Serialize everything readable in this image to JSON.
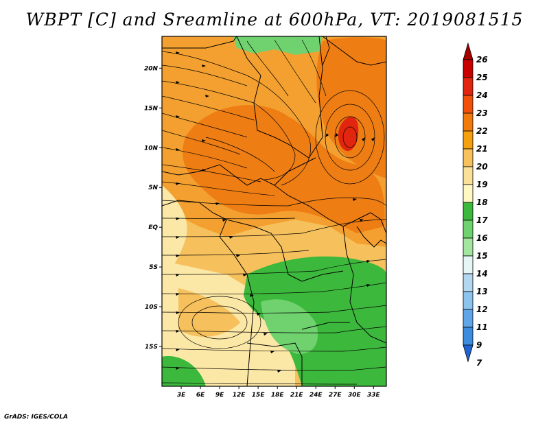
{
  "title": "WBPT [C] and Sreamline at 600hPa, VT: 2019081515",
  "footer": "GrADS: IGES/COLA",
  "map": {
    "lon_range": [
      0,
      35
    ],
    "lat_range": [
      -20,
      24
    ],
    "x_ticks": [
      "3E",
      "6E",
      "9E",
      "12E",
      "15E",
      "18E",
      "21E",
      "24E",
      "27E",
      "30E",
      "33E"
    ],
    "x_tick_values": [
      3,
      6,
      9,
      12,
      15,
      18,
      21,
      24,
      27,
      30,
      33
    ],
    "y_ticks": [
      "20N",
      "15N",
      "10N",
      "5N",
      "EQ",
      "5S",
      "10S",
      "15S"
    ],
    "y_tick_values": [
      20,
      15,
      10,
      5,
      0,
      -5,
      -10,
      -15
    ]
  },
  "colorbar": {
    "labels": [
      "26",
      "25",
      "24",
      "23",
      "22",
      "21",
      "20",
      "19",
      "18",
      "17",
      "16",
      "15",
      "14",
      "13",
      "12",
      "11",
      "9",
      "7"
    ],
    "colors": [
      "#a50000",
      "#c80000",
      "#e1250e",
      "#f0500a",
      "#f27a0a",
      "#f5a00f",
      "#f7c25e",
      "#fae199",
      "#fff8c2",
      "#3cb83c",
      "#6fd26f",
      "#a4e6a0",
      "#e6f5f5",
      "#b4d7f0",
      "#8cc4ee",
      "#5fa6e8",
      "#3c8ce0",
      "#1e64d2"
    ]
  },
  "temperature_colors": {
    "deep_orange": "#ee7d14",
    "orange": "#f3a030",
    "light_orange": "#f6c05c",
    "pale_yellow": "#fbe7a6",
    "green": "#3cb83c",
    "light_green": "#6fd26f",
    "red": "#e1250e"
  }
}
